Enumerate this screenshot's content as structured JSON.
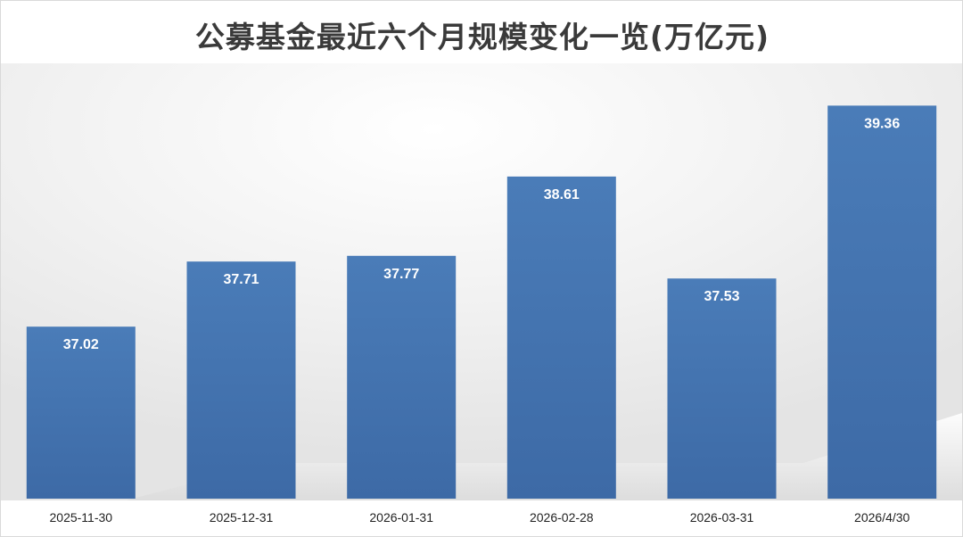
{
  "chart_data": {
    "type": "bar",
    "title": "公募基金最近六个月规模变化一览(万亿元)",
    "categories": [
      "2025-11-30",
      "2025-12-31",
      "2026-01-31",
      "2026-02-28",
      "2026-03-31",
      "2026/4/30"
    ],
    "values": [
      37.02,
      37.71,
      37.77,
      38.61,
      37.53,
      39.36
    ],
    "value_labels": [
      "37.02",
      "37.71",
      "37.77",
      "38.61",
      "37.53",
      "39.36"
    ],
    "ylim": [
      35.2,
      39.6
    ],
    "grid": false,
    "legend": "none",
    "bar_color": "#4a7cb8",
    "bar_color_dark": "#3d6aa6",
    "label_color": "#ffffff"
  }
}
